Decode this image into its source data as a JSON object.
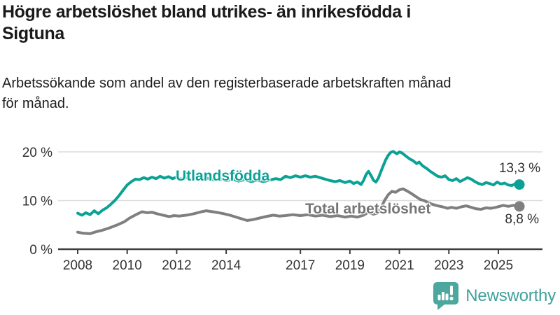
{
  "header": {
    "title_lines": [
      "Högre arbetslöshet bland utrikes- än inrikesfödda i",
      "Sigtuna"
    ],
    "subtitle_lines": [
      "Arbetssökande som andel av den registerbaserade arbetskraften månad",
      "för månad."
    ]
  },
  "colors": {
    "accent_teal": "#0ba296",
    "series_gray": "#7f7f7f",
    "grid": "#dcdcdc",
    "axis": "#3d3d3d",
    "text_dark": "#1a1a1a",
    "logo_teal": "#4ca89f"
  },
  "chart_data": {
    "type": "line",
    "x_axis": {
      "ticks": [
        2008,
        2010,
        2012,
        2014,
        2017,
        2019,
        2021,
        2023,
        2025
      ],
      "tick_labels": [
        "2008",
        "2010",
        "2012",
        "2014",
        "2017",
        "2019",
        "2021",
        "2023",
        "2025"
      ],
      "range": [
        2007.2,
        2026.8
      ]
    },
    "y_axis": {
      "ticks": [
        0,
        10,
        20
      ],
      "tick_labels": [
        "0 %",
        "10 %",
        "20 %"
      ],
      "range": [
        0,
        21.5
      ],
      "gridlines": true
    },
    "series": [
      {
        "name": "Utlandsfödda",
        "color": "#0ba296",
        "end_value": 13.3,
        "end_label": "13,3 %",
        "points": [
          [
            2008.0,
            7.4
          ],
          [
            2008.17,
            7.0
          ],
          [
            2008.33,
            7.5
          ],
          [
            2008.5,
            7.1
          ],
          [
            2008.67,
            7.9
          ],
          [
            2008.83,
            7.3
          ],
          [
            2009.0,
            8.0
          ],
          [
            2009.17,
            8.5
          ],
          [
            2009.33,
            9.2
          ],
          [
            2009.5,
            10.0
          ],
          [
            2009.67,
            11.0
          ],
          [
            2009.83,
            12.1
          ],
          [
            2010.0,
            13.2
          ],
          [
            2010.17,
            13.9
          ],
          [
            2010.33,
            14.4
          ],
          [
            2010.5,
            14.3
          ],
          [
            2010.67,
            14.7
          ],
          [
            2010.83,
            14.4
          ],
          [
            2011.0,
            14.8
          ],
          [
            2011.17,
            14.5
          ],
          [
            2011.33,
            15.0
          ],
          [
            2011.5,
            14.6
          ],
          [
            2011.67,
            14.9
          ],
          [
            2011.83,
            14.5
          ],
          [
            2012.0,
            14.8
          ],
          [
            2012.2,
            14.4
          ],
          [
            2012.4,
            14.7
          ],
          [
            2012.6,
            14.3
          ],
          [
            2012.8,
            14.6
          ],
          [
            2013.0,
            14.3
          ],
          [
            2013.25,
            14.6
          ],
          [
            2013.5,
            14.2
          ],
          [
            2013.75,
            14.5
          ],
          [
            2014.0,
            14.1
          ],
          [
            2014.25,
            14.4
          ],
          [
            2014.5,
            14.0
          ],
          [
            2014.75,
            14.3
          ],
          [
            2015.0,
            13.9
          ],
          [
            2015.25,
            14.2
          ],
          [
            2015.5,
            13.9
          ],
          [
            2015.75,
            14.2
          ],
          [
            2016.0,
            14.5
          ],
          [
            2016.2,
            14.3
          ],
          [
            2016.4,
            15.0
          ],
          [
            2016.6,
            14.7
          ],
          [
            2016.8,
            15.1
          ],
          [
            2017.0,
            14.8
          ],
          [
            2017.2,
            15.1
          ],
          [
            2017.4,
            14.8
          ],
          [
            2017.6,
            15.0
          ],
          [
            2017.8,
            14.7
          ],
          [
            2018.0,
            14.4
          ],
          [
            2018.2,
            14.1
          ],
          [
            2018.4,
            13.9
          ],
          [
            2018.6,
            14.1
          ],
          [
            2018.8,
            13.7
          ],
          [
            2019.0,
            14.0
          ],
          [
            2019.15,
            13.5
          ],
          [
            2019.3,
            13.8
          ],
          [
            2019.45,
            13.3
          ],
          [
            2019.55,
            14.1
          ],
          [
            2019.65,
            15.3
          ],
          [
            2019.75,
            16.0
          ],
          [
            2019.85,
            15.2
          ],
          [
            2019.95,
            14.2
          ],
          [
            2020.05,
            13.8
          ],
          [
            2020.15,
            14.6
          ],
          [
            2020.25,
            15.9
          ],
          [
            2020.35,
            17.2
          ],
          [
            2020.45,
            18.4
          ],
          [
            2020.55,
            19.3
          ],
          [
            2020.65,
            19.9
          ],
          [
            2020.75,
            20.1
          ],
          [
            2020.9,
            19.6
          ],
          [
            2021.0,
            20.0
          ],
          [
            2021.1,
            19.8
          ],
          [
            2021.25,
            19.2
          ],
          [
            2021.4,
            18.6
          ],
          [
            2021.55,
            18.2
          ],
          [
            2021.7,
            17.6
          ],
          [
            2021.8,
            17.9
          ],
          [
            2021.95,
            17.1
          ],
          [
            2022.1,
            16.6
          ],
          [
            2022.25,
            16.0
          ],
          [
            2022.4,
            15.5
          ],
          [
            2022.55,
            15.0
          ],
          [
            2022.7,
            14.8
          ],
          [
            2022.85,
            15.1
          ],
          [
            2023.0,
            14.3
          ],
          [
            2023.15,
            14.1
          ],
          [
            2023.3,
            14.5
          ],
          [
            2023.45,
            13.9
          ],
          [
            2023.6,
            14.3
          ],
          [
            2023.75,
            14.7
          ],
          [
            2023.9,
            14.4
          ],
          [
            2024.05,
            13.9
          ],
          [
            2024.2,
            13.5
          ],
          [
            2024.35,
            13.3
          ],
          [
            2024.5,
            13.7
          ],
          [
            2024.65,
            13.5
          ],
          [
            2024.8,
            13.2
          ],
          [
            2024.95,
            13.8
          ],
          [
            2025.1,
            13.4
          ],
          [
            2025.25,
            13.6
          ],
          [
            2025.4,
            13.2
          ],
          [
            2025.55,
            13.1
          ],
          [
            2025.7,
            13.5
          ],
          [
            2025.85,
            13.3
          ]
        ]
      },
      {
        "name": "Total arbetslöshet",
        "color": "#7f7f7f",
        "end_value": 8.8,
        "end_label": "8,8 %",
        "points": [
          [
            2008.0,
            3.5
          ],
          [
            2008.2,
            3.3
          ],
          [
            2008.5,
            3.2
          ],
          [
            2008.75,
            3.6
          ],
          [
            2009.0,
            3.9
          ],
          [
            2009.3,
            4.4
          ],
          [
            2009.6,
            5.0
          ],
          [
            2009.9,
            5.7
          ],
          [
            2010.1,
            6.4
          ],
          [
            2010.35,
            7.1
          ],
          [
            2010.6,
            7.7
          ],
          [
            2010.8,
            7.5
          ],
          [
            2011.0,
            7.6
          ],
          [
            2011.2,
            7.3
          ],
          [
            2011.45,
            7.0
          ],
          [
            2011.7,
            6.7
          ],
          [
            2011.9,
            6.9
          ],
          [
            2012.1,
            6.8
          ],
          [
            2012.4,
            7.0
          ],
          [
            2012.7,
            7.3
          ],
          [
            2013.0,
            7.7
          ],
          [
            2013.2,
            7.9
          ],
          [
            2013.45,
            7.7
          ],
          [
            2013.7,
            7.5
          ],
          [
            2013.9,
            7.3
          ],
          [
            2014.15,
            7.0
          ],
          [
            2014.4,
            6.6
          ],
          [
            2014.65,
            6.2
          ],
          [
            2014.85,
            5.9
          ],
          [
            2015.1,
            6.1
          ],
          [
            2015.35,
            6.4
          ],
          [
            2015.6,
            6.7
          ],
          [
            2015.9,
            7.0
          ],
          [
            2016.15,
            6.8
          ],
          [
            2016.4,
            6.9
          ],
          [
            2016.7,
            7.1
          ],
          [
            2017.0,
            6.9
          ],
          [
            2017.3,
            7.1
          ],
          [
            2017.6,
            6.8
          ],
          [
            2017.9,
            7.0
          ],
          [
            2018.2,
            6.7
          ],
          [
            2018.5,
            6.9
          ],
          [
            2018.8,
            6.6
          ],
          [
            2019.05,
            6.8
          ],
          [
            2019.3,
            6.6
          ],
          [
            2019.55,
            7.0
          ],
          [
            2019.75,
            7.6
          ],
          [
            2019.95,
            7.2
          ],
          [
            2020.1,
            7.4
          ],
          [
            2020.25,
            8.4
          ],
          [
            2020.4,
            10.0
          ],
          [
            2020.55,
            11.2
          ],
          [
            2020.7,
            11.9
          ],
          [
            2020.85,
            11.7
          ],
          [
            2021.0,
            12.2
          ],
          [
            2021.15,
            12.4
          ],
          [
            2021.3,
            12.0
          ],
          [
            2021.5,
            11.4
          ],
          [
            2021.7,
            10.7
          ],
          [
            2021.85,
            10.2
          ],
          [
            2022.0,
            10.0
          ],
          [
            2022.15,
            9.6
          ],
          [
            2022.35,
            9.2
          ],
          [
            2022.55,
            8.9
          ],
          [
            2022.75,
            8.7
          ],
          [
            2022.95,
            8.4
          ],
          [
            2023.1,
            8.6
          ],
          [
            2023.3,
            8.4
          ],
          [
            2023.5,
            8.7
          ],
          [
            2023.7,
            8.9
          ],
          [
            2023.9,
            8.6
          ],
          [
            2024.1,
            8.3
          ],
          [
            2024.3,
            8.2
          ],
          [
            2024.5,
            8.5
          ],
          [
            2024.7,
            8.4
          ],
          [
            2024.9,
            8.6
          ],
          [
            2025.05,
            8.8
          ],
          [
            2025.2,
            9.0
          ],
          [
            2025.4,
            8.8
          ],
          [
            2025.6,
            9.0
          ],
          [
            2025.85,
            8.8
          ]
        ]
      }
    ],
    "title": "Högre arbetslöshet bland utrikes- än inrikesfödda i Sigtuna",
    "subtitle": "Arbetssökande som andel av den registerbaserade arbetskraften månad för månad.",
    "legend_position": "inline-on-lines"
  },
  "footer": {
    "brand": "Newsworthy",
    "icon": "newsworthy-speech-bubble-barchart-icon"
  }
}
